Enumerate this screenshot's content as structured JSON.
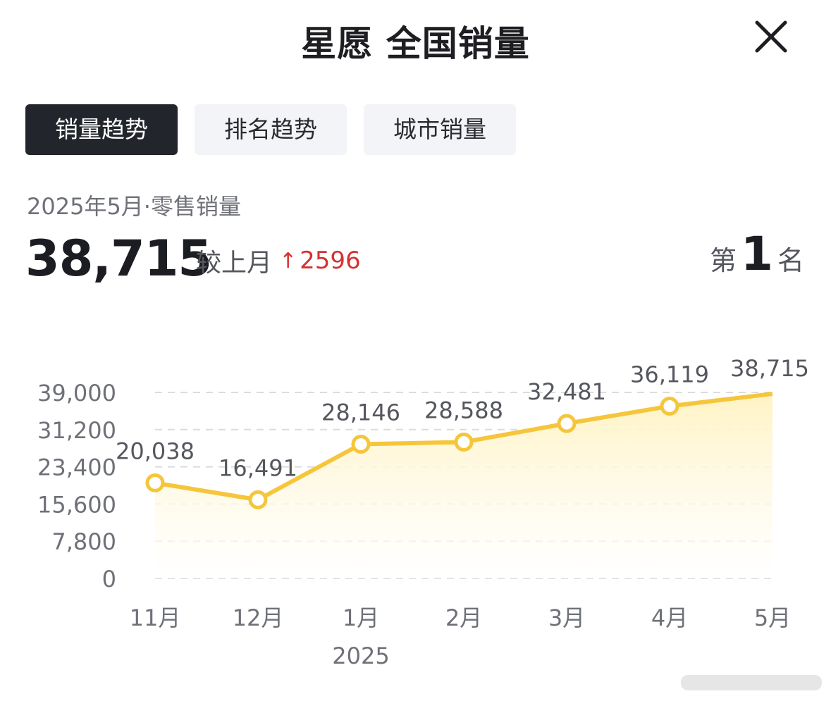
{
  "header": {
    "title": "星愿 全国销量",
    "close_icon": "close-icon"
  },
  "tabs": [
    {
      "label": "销量趋势",
      "active": true
    },
    {
      "label": "排名趋势",
      "active": false
    },
    {
      "label": "城市销量",
      "active": false
    }
  ],
  "summary": {
    "period": "2025年5月·零售销量",
    "value": "38,715",
    "compare_label": "较上月",
    "arrow": "↑",
    "delta": "2596",
    "rank_prefix": "第",
    "rank": "1",
    "rank_suffix": "名"
  },
  "colors": {
    "accent_line": "#f5c63c",
    "accent_fill": "#fff3c4",
    "up": "#d63131",
    "active_tab": "#23252c"
  },
  "chart_data": {
    "type": "area",
    "categories": [
      "11月",
      "12月",
      "1月",
      "2月",
      "3月",
      "4月",
      "5月"
    ],
    "year_label": "2025",
    "year_label_under": "1月",
    "values": [
      20038,
      16491,
      28146,
      28588,
      32481,
      36119,
      38715
    ],
    "value_labels": [
      "20,038",
      "16,491",
      "28,146",
      "28,588",
      "32,481",
      "36,119",
      "38,715"
    ],
    "y_ticks": [
      0,
      7800,
      15600,
      23400,
      31200,
      39000
    ],
    "y_tick_labels": [
      "0",
      "7,800",
      "15,600",
      "23,400",
      "31,200",
      "39,000"
    ],
    "ylim": [
      0,
      39000
    ],
    "grid": true,
    "legend": "none"
  }
}
